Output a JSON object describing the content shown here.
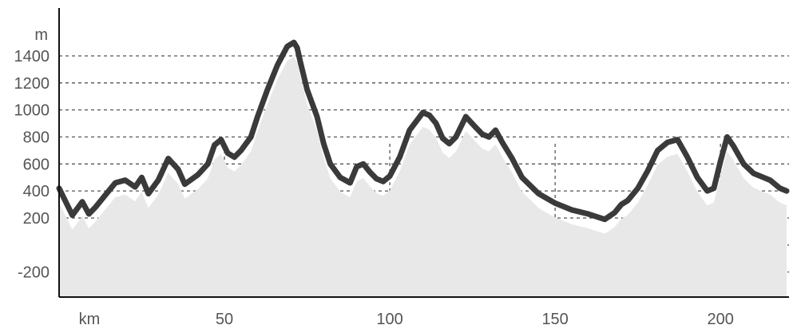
{
  "chart_data": {
    "type": "area",
    "ylabel": "m",
    "xlabel": "km",
    "xlim": [
      0,
      220
    ],
    "ylim": [
      -300,
      1800
    ],
    "yticks": [
      -200,
      200,
      400,
      600,
      800,
      1000,
      1200,
      1400
    ],
    "y_gridlines": [
      -200,
      0,
      200,
      400,
      600,
      800,
      1000,
      1200,
      1400
    ],
    "xticks": [
      50,
      100,
      150,
      200
    ],
    "x_gridlines": [
      50,
      100,
      150,
      200
    ],
    "grid": true,
    "colors": {
      "line": "#3a3a3a",
      "area": "#e8e8e8",
      "grid": "#555555"
    },
    "series": [
      {
        "x": [
          0,
          4,
          7,
          9,
          11,
          13,
          17,
          20,
          23,
          25,
          27,
          30,
          33,
          36,
          38,
          42,
          45,
          47,
          49,
          51,
          53,
          55,
          58,
          60,
          63,
          66,
          69,
          71,
          72,
          73,
          75,
          78,
          80,
          82,
          85,
          88,
          90,
          92,
          94,
          96,
          98,
          100,
          103,
          106,
          110,
          112,
          114,
          116,
          118,
          120,
          123,
          126,
          128,
          130,
          132,
          134,
          137,
          140,
          145,
          150,
          155,
          160,
          165,
          168,
          170,
          172,
          175,
          178,
          181,
          184,
          187,
          190,
          193,
          196,
          198,
          200,
          202,
          204,
          207,
          210,
          213,
          215,
          218,
          220
        ],
        "y": [
          420,
          220,
          320,
          230,
          280,
          340,
          460,
          480,
          430,
          500,
          380,
          480,
          640,
          560,
          450,
          520,
          600,
          740,
          780,
          680,
          650,
          700,
          800,
          950,
          1150,
          1330,
          1470,
          1500,
          1460,
          1350,
          1150,
          950,
          750,
          600,
          500,
          460,
          580,
          600,
          540,
          490,
          470,
          510,
          650,
          850,
          980,
          960,
          900,
          790,
          750,
          800,
          950,
          870,
          820,
          800,
          850,
          760,
          640,
          500,
          380,
          310,
          260,
          230,
          190,
          240,
          300,
          330,
          420,
          550,
          700,
          760,
          780,
          650,
          500,
          400,
          420,
          620,
          800,
          730,
          600,
          530,
          500,
          480,
          420,
          400
        ]
      }
    ]
  }
}
